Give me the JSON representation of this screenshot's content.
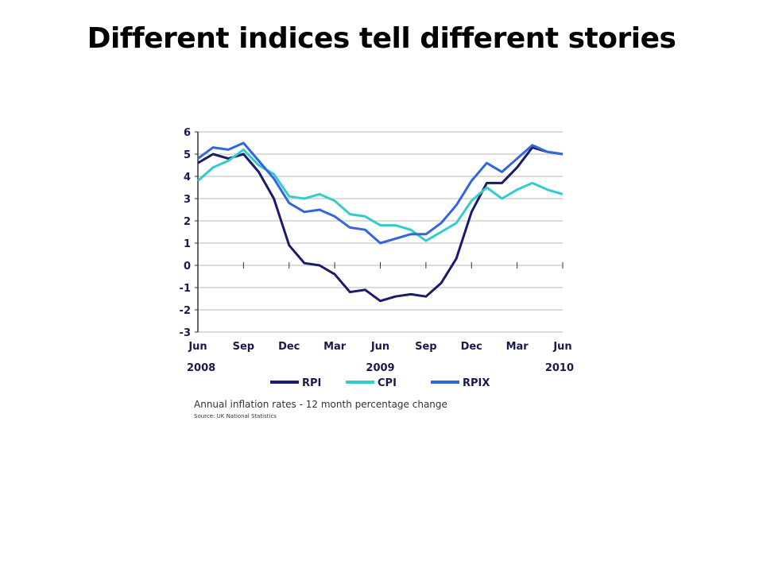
{
  "slide": {
    "title": "Different indices tell different stories"
  },
  "caption": "Annual inflation rates - 12 month percentage change",
  "source": "Source: UK National Statistics",
  "chart_data": {
    "type": "line",
    "title": "",
    "xlabel": "",
    "ylabel": "",
    "ylim": [
      -3,
      6
    ],
    "yticks": [
      "6",
      "5",
      "4",
      "3",
      "2",
      "1",
      "0",
      "-1",
      "-2",
      "-3"
    ],
    "x_month_labels": [
      "Jun",
      "Sep",
      "Dec",
      "Mar",
      "Jun",
      "Sep",
      "Dec",
      "Mar",
      "Jun"
    ],
    "x_year_labels": [
      "2008",
      "2009",
      "2010"
    ],
    "grid": true,
    "legend_position": "bottom",
    "x": [
      "2008-06",
      "2008-07",
      "2008-08",
      "2008-09",
      "2008-10",
      "2008-11",
      "2008-12",
      "2009-01",
      "2009-02",
      "2009-03",
      "2009-04",
      "2009-05",
      "2009-06",
      "2009-07",
      "2009-08",
      "2009-09",
      "2009-10",
      "2009-11",
      "2009-12",
      "2010-01",
      "2010-02",
      "2010-03",
      "2010-04",
      "2010-05",
      "2010-06"
    ],
    "series": [
      {
        "name": "RPI",
        "color": "#1a1a6e",
        "values": [
          4.6,
          5.0,
          4.8,
          5.0,
          4.2,
          3.0,
          0.9,
          0.1,
          0.0,
          -0.4,
          -1.2,
          -1.1,
          -1.6,
          -1.4,
          -1.3,
          -1.4,
          -0.8,
          0.3,
          2.4,
          3.7,
          3.7,
          4.4,
          5.3,
          5.1,
          5.0
        ]
      },
      {
        "name": "CPI",
        "color": "#33cccc",
        "values": [
          3.8,
          4.4,
          4.7,
          5.2,
          4.5,
          4.1,
          3.1,
          3.0,
          3.2,
          2.9,
          2.3,
          2.2,
          1.8,
          1.8,
          1.6,
          1.1,
          1.5,
          1.9,
          2.9,
          3.5,
          3.0,
          3.4,
          3.7,
          3.4,
          3.2
        ]
      },
      {
        "name": "RPIX",
        "color": "#3366dd",
        "values": [
          4.8,
          5.3,
          5.2,
          5.5,
          4.7,
          3.9,
          2.8,
          2.4,
          2.5,
          2.2,
          1.7,
          1.6,
          1.0,
          1.2,
          1.4,
          1.4,
          1.9,
          2.7,
          3.8,
          4.6,
          4.2,
          4.8,
          5.4,
          5.1,
          5.0
        ]
      }
    ]
  }
}
